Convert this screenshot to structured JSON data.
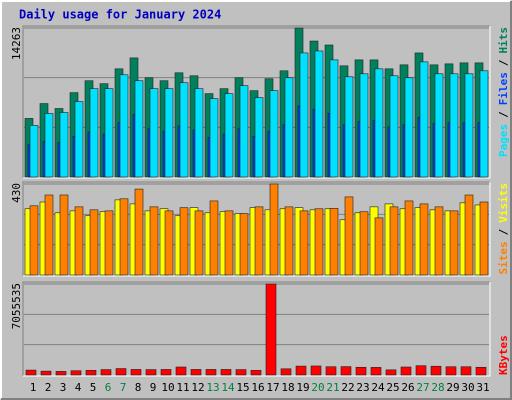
{
  "title": "Daily usage for January 2024",
  "separator": "/",
  "categories": [
    "1",
    "2",
    "3",
    "4",
    "5",
    "6",
    "7",
    "8",
    "9",
    "10",
    "11",
    "12",
    "13",
    "14",
    "15",
    "16",
    "17",
    "18",
    "19",
    "20",
    "21",
    "22",
    "23",
    "24",
    "25",
    "26",
    "27",
    "28",
    "29",
    "30",
    "31"
  ],
  "category_colors": [
    "#000000",
    "#000000",
    "#000000",
    "#000000",
    "#000000",
    "#008040",
    "#008040",
    "#000000",
    "#000000",
    "#000000",
    "#000000",
    "#000000",
    "#008040",
    "#008040",
    "#000000",
    "#000000",
    "#000000",
    "#000000",
    "#000000",
    "#008040",
    "#008040",
    "#000000",
    "#000000",
    "#000000",
    "#000000",
    "#000000",
    "#008040",
    "#008040",
    "#000000",
    "#000000",
    "#000000"
  ],
  "chart_data": [
    {
      "type": "bar",
      "ylim": [
        0,
        14263
      ],
      "yticks": [
        14263
      ],
      "series": [
        {
          "name": "Hits",
          "color": "#00805c",
          "values": [
            5605,
            7030,
            6555,
            8075,
            9215,
            8930,
            10355,
            11400,
            9500,
            9215,
            9975,
            9690,
            7980,
            8455,
            9500,
            8265,
            9405,
            10165,
            14263,
            13015,
            12635,
            10640,
            11210,
            11210,
            10355,
            10735,
            11875,
            10735,
            10830,
            10925,
            10925
          ]
        },
        {
          "name": "Files",
          "color": "#0040ff",
          "values": [
            3100,
            3400,
            3300,
            3900,
            4300,
            4100,
            5200,
            6000,
            4600,
            4400,
            4900,
            4500,
            3800,
            4100,
            4600,
            3900,
            4400,
            5000,
            6800,
            6500,
            6100,
            5000,
            5300,
            5400,
            4800,
            5000,
            5700,
            5100,
            5200,
            5200,
            5200
          ]
        },
        {
          "name": "Pages",
          "color": "#00e0ff",
          "values": [
            4940,
            6080,
            6175,
            7220,
            8455,
            8455,
            9785,
            9215,
            8455,
            8455,
            9025,
            8455,
            7505,
            7980,
            8740,
            7600,
            8265,
            9500,
            11875,
            12065,
            11210,
            9595,
            9880,
            10355,
            9690,
            9500,
            11020,
            9880,
            9880,
            9880,
            10165
          ]
        }
      ]
    },
    {
      "type": "bar",
      "ylim": [
        0,
        430
      ],
      "yticks": [
        430
      ],
      "series": [
        {
          "name": "Sites",
          "color": "#ff8000",
          "values": [
            327,
            378,
            378,
            322,
            308,
            303,
            360,
            406,
            322,
            303,
            318,
            303,
            350,
            303,
            290,
            322,
            430,
            322,
            303,
            313,
            315,
            369,
            299,
            270,
            322,
            350,
            336,
            322,
            303,
            378,
            345
          ]
        },
        {
          "name": "Visits",
          "color": "#ffff00",
          "values": [
            313,
            345,
            294,
            303,
            280,
            299,
            355,
            336,
            303,
            313,
            280,
            318,
            294,
            299,
            290,
            318,
            308,
            313,
            318,
            308,
            313,
            261,
            294,
            322,
            336,
            313,
            318,
            308,
            303,
            341,
            331
          ]
        }
      ]
    },
    {
      "type": "bar",
      "ylim": [
        0,
        7055535
      ],
      "yticks": [
        7055535
      ],
      "series": [
        {
          "name": "KBytes",
          "color": "#ff0000",
          "values": [
            380000,
            300000,
            280000,
            330000,
            360000,
            420000,
            500000,
            430000,
            420000,
            430000,
            620000,
            430000,
            430000,
            430000,
            420000,
            360000,
            7055535,
            480000,
            690000,
            700000,
            640000,
            650000,
            600000,
            590000,
            400000,
            620000,
            720000,
            680000,
            640000,
            640000,
            600000
          ]
        }
      ]
    }
  ]
}
